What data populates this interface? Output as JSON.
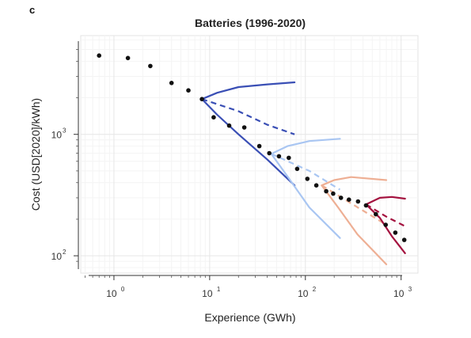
{
  "panel_letter": "c",
  "chart_data": {
    "type": "line",
    "title": "Batteries (1996-2020)",
    "xlabel": "Experience (GWh)",
    "ylabel": "Cost (USD[2020]/kWh)",
    "x_scale": "log",
    "y_scale": "log",
    "xlim": [
      0.45,
      1500
    ],
    "ylim": [
      72,
      6500
    ],
    "x_ticks": [
      {
        "value": 1,
        "base": "10",
        "exp": "0"
      },
      {
        "value": 10,
        "base": "10",
        "exp": "1"
      },
      {
        "value": 100,
        "base": "10",
        "exp": "2"
      },
      {
        "value": 1000,
        "base": "10",
        "exp": "3"
      }
    ],
    "y_ticks": [
      {
        "value": 100,
        "base": "10",
        "exp": "2"
      },
      {
        "value": 1000,
        "base": "10",
        "exp": "3"
      }
    ],
    "grid": true,
    "observed": {
      "x": [
        0.7,
        1.4,
        2.4,
        4.0,
        6.0,
        8.3,
        11.0,
        16.0,
        23.0,
        33.0,
        42.0,
        53.0,
        67.0,
        82.0,
        105.0,
        130.0,
        165.0,
        195.0,
        235.0,
        285.0,
        355.0,
        430.0,
        545.0,
        690.0,
        870.0,
        1080.0
      ],
      "y": [
        4450,
        4250,
        3650,
        2650,
        2300,
        1950,
        1380,
        1180,
        1140,
        800,
        700,
        660,
        640,
        520,
        430,
        380,
        340,
        325,
        300,
        290,
        280,
        260,
        220,
        180,
        155,
        135
      ],
      "color": "#111111"
    },
    "projections": [
      {
        "color": "#3a4fb5",
        "origin": [
          8.3,
          1950
        ],
        "upper": {
          "x": [
            8.3,
            12,
            20,
            40,
            77
          ],
          "y": [
            1950,
            2200,
            2450,
            2580,
            2680
          ]
        },
        "median": {
          "x": [
            8.3,
            20,
            40,
            77
          ],
          "y": [
            1950,
            1550,
            1200,
            1000
          ]
        },
        "lower": {
          "x": [
            8.3,
            12,
            20,
            40,
            77
          ],
          "y": [
            1950,
            1450,
            1000,
            620,
            380
          ]
        }
      },
      {
        "color": "#a9c6f2",
        "origin": [
          44,
          690
        ],
        "upper": {
          "x": [
            44,
            65,
            110,
            230
          ],
          "y": [
            690,
            800,
            880,
            920
          ]
        },
        "median": {
          "x": [
            44,
            110,
            230
          ],
          "y": [
            690,
            500,
            350
          ]
        },
        "lower": {
          "x": [
            44,
            65,
            110,
            230
          ],
          "y": [
            690,
            450,
            250,
            140
          ]
        }
      },
      {
        "color": "#eeaf94",
        "origin": [
          148,
          380
        ],
        "upper": {
          "x": [
            148,
            200,
            300,
            700
          ],
          "y": [
            380,
            420,
            445,
            420
          ]
        },
        "median": {
          "x": [
            148,
            300,
            700
          ],
          "y": [
            380,
            270,
            180
          ]
        },
        "lower": {
          "x": [
            148,
            220,
            350,
            700
          ],
          "y": [
            380,
            250,
            150,
            85
          ]
        }
      },
      {
        "color": "#a4123f",
        "origin": [
          430,
          265
        ],
        "upper": {
          "x": [
            430,
            600,
            800,
            1100
          ],
          "y": [
            265,
            300,
            305,
            295
          ]
        },
        "median": {
          "x": [
            430,
            700,
            1100
          ],
          "y": [
            265,
            210,
            175
          ]
        },
        "lower": {
          "x": [
            430,
            600,
            800,
            1100
          ],
          "y": [
            265,
            205,
            145,
            105
          ]
        }
      }
    ]
  }
}
